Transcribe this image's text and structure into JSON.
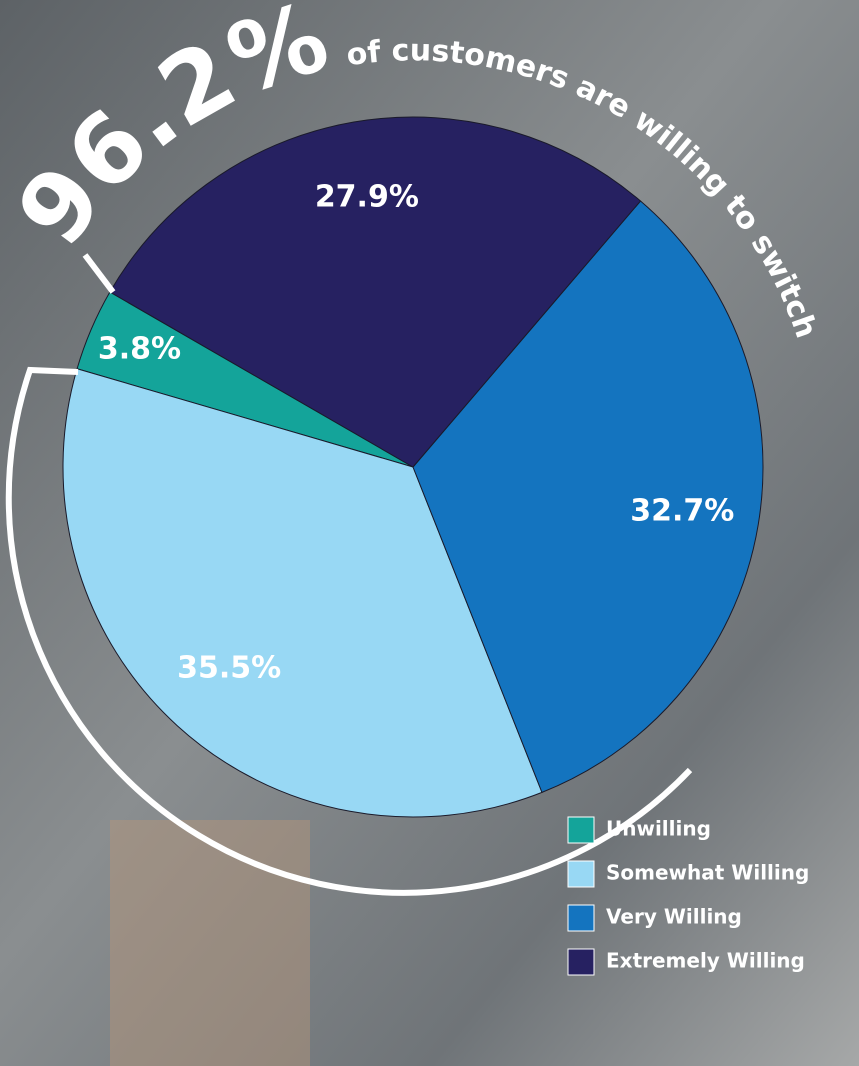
{
  "chart_data": {
    "type": "pie",
    "headline_figure": "96.2%",
    "headline_text": "of customers are willing to switch",
    "categories": [
      "Unwilling",
      "Somewhat Willing",
      "Very Willing",
      "Extremely Willing"
    ],
    "values": [
      3.8,
      35.5,
      32.7,
      27.9
    ],
    "value_labels": [
      "3.8%",
      "35.5%",
      "32.7%",
      "27.9%"
    ],
    "colors": [
      "#14a49a",
      "#98d8f4",
      "#1474bf",
      "#262161"
    ],
    "legend": "bottom-right"
  }
}
